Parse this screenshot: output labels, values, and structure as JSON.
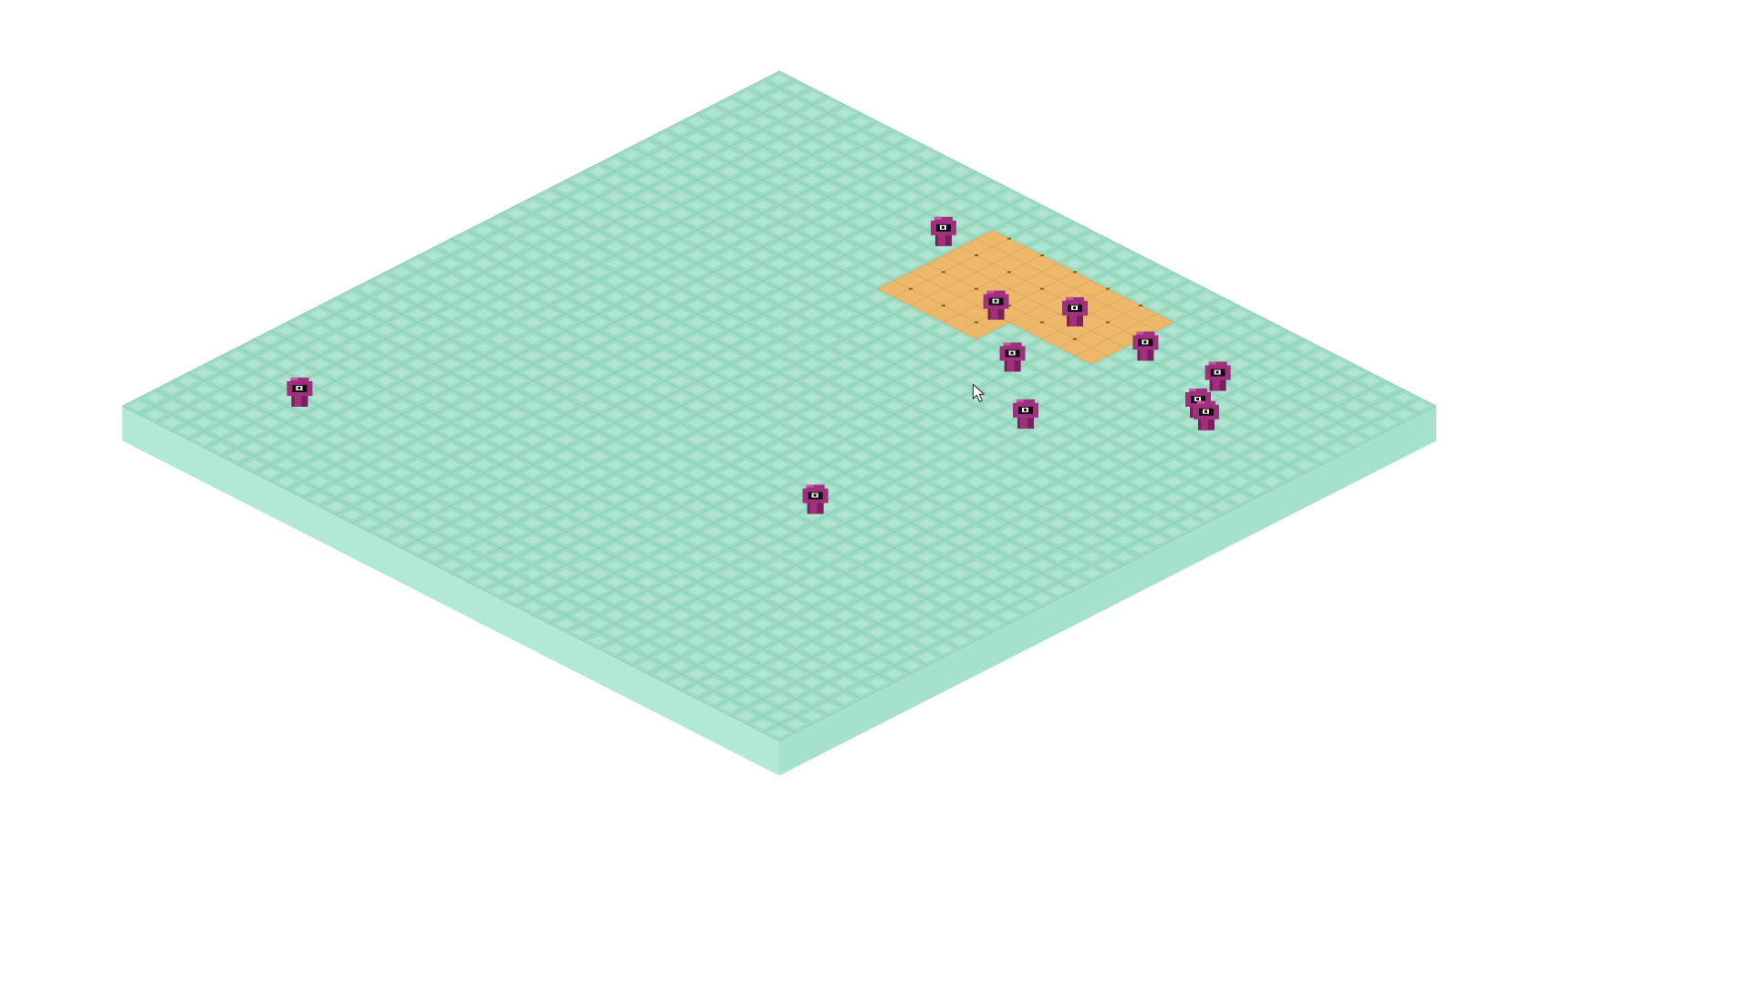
{
  "scene": {
    "type": "isometric-tile-board",
    "board": {
      "grid_size": 40,
      "tile_color": "#9fdcc6",
      "tile_highlight_color": "#b4e6d4",
      "tile_line_color": "#89cbb3",
      "side_left_color": "#b2e8d8",
      "side_right_color": "#a6e1cf"
    },
    "zone": {
      "name": "selected-area",
      "fill_color": "#edb86a",
      "edge_color": "#d9a253",
      "marker_color": "#8c5a1e",
      "cells": [
        [
          3,
          16
        ],
        [
          3,
          17
        ],
        [
          3,
          18
        ],
        [
          3,
          19
        ],
        [
          3,
          20
        ],
        [
          3,
          21
        ],
        [
          3,
          22
        ],
        [
          3,
          23
        ],
        [
          3,
          24
        ],
        [
          3,
          25
        ],
        [
          3,
          26
        ],
        [
          4,
          16
        ],
        [
          4,
          17
        ],
        [
          4,
          18
        ],
        [
          4,
          19
        ],
        [
          4,
          20
        ],
        [
          4,
          21
        ],
        [
          4,
          22
        ],
        [
          4,
          23
        ],
        [
          4,
          24
        ],
        [
          4,
          25
        ],
        [
          4,
          26
        ],
        [
          5,
          16
        ],
        [
          5,
          17
        ],
        [
          5,
          18
        ],
        [
          5,
          19
        ],
        [
          5,
          20
        ],
        [
          5,
          21
        ],
        [
          5,
          22
        ],
        [
          5,
          23
        ],
        [
          5,
          24
        ],
        [
          5,
          25
        ],
        [
          5,
          26
        ],
        [
          6,
          16
        ],
        [
          6,
          17
        ],
        [
          6,
          18
        ],
        [
          6,
          19
        ],
        [
          6,
          20
        ],
        [
          6,
          21
        ],
        [
          6,
          22
        ],
        [
          6,
          23
        ],
        [
          6,
          24
        ],
        [
          6,
          25
        ],
        [
          6,
          26
        ],
        [
          7,
          16
        ],
        [
          7,
          17
        ],
        [
          7,
          18
        ],
        [
          7,
          19
        ],
        [
          7,
          20
        ],
        [
          7,
          21
        ],
        [
          7,
          22
        ],
        [
          7,
          23
        ],
        [
          7,
          24
        ],
        [
          7,
          25
        ],
        [
          7,
          26
        ],
        [
          8,
          16
        ],
        [
          8,
          17
        ],
        [
          8,
          18
        ],
        [
          8,
          19
        ],
        [
          8,
          20
        ],
        [
          8,
          21
        ],
        [
          9,
          16
        ],
        [
          9,
          17
        ],
        [
          9,
          18
        ],
        [
          9,
          19
        ],
        [
          9,
          20
        ],
        [
          9,
          21
        ]
      ]
    },
    "agents": {
      "body_color": "#a0307e",
      "dark_color": "#7a1e5c",
      "light_color": "#cc52a8",
      "eye_white": "#ffffff",
      "eye_black": "#111111",
      "units": [
        {
          "name": "creature-1",
          "row": 5.5,
          "col": 15.5
        },
        {
          "name": "creature-2",
          "row": 6.3,
          "col": 24.3
        },
        {
          "name": "creature-3",
          "row": 6.2,
          "col": 28.5
        },
        {
          "name": "creature-4",
          "row": 8.3,
          "col": 21.5
        },
        {
          "name": "creature-5",
          "row": 5.8,
          "col": 32.5
        },
        {
          "name": "creature-6",
          "row": 8.5,
          "col": 34.5
        },
        {
          "name": "creature-7",
          "row": 10.9,
          "col": 25.1
        },
        {
          "name": "creature-8",
          "row": 8.0,
          "col": 33.5
        },
        {
          "name": "creature-9",
          "row": 13.9,
          "col": 28.9
        },
        {
          "name": "creature-10",
          "row": 34.7,
          "col": 5.5
        },
        {
          "name": "creature-11",
          "row": 25.4,
          "col": 27.6
        }
      ]
    },
    "cursor": {
      "icon": "mouse-pointer-icon",
      "row": 12.8,
      "col": 24.6
    }
  }
}
